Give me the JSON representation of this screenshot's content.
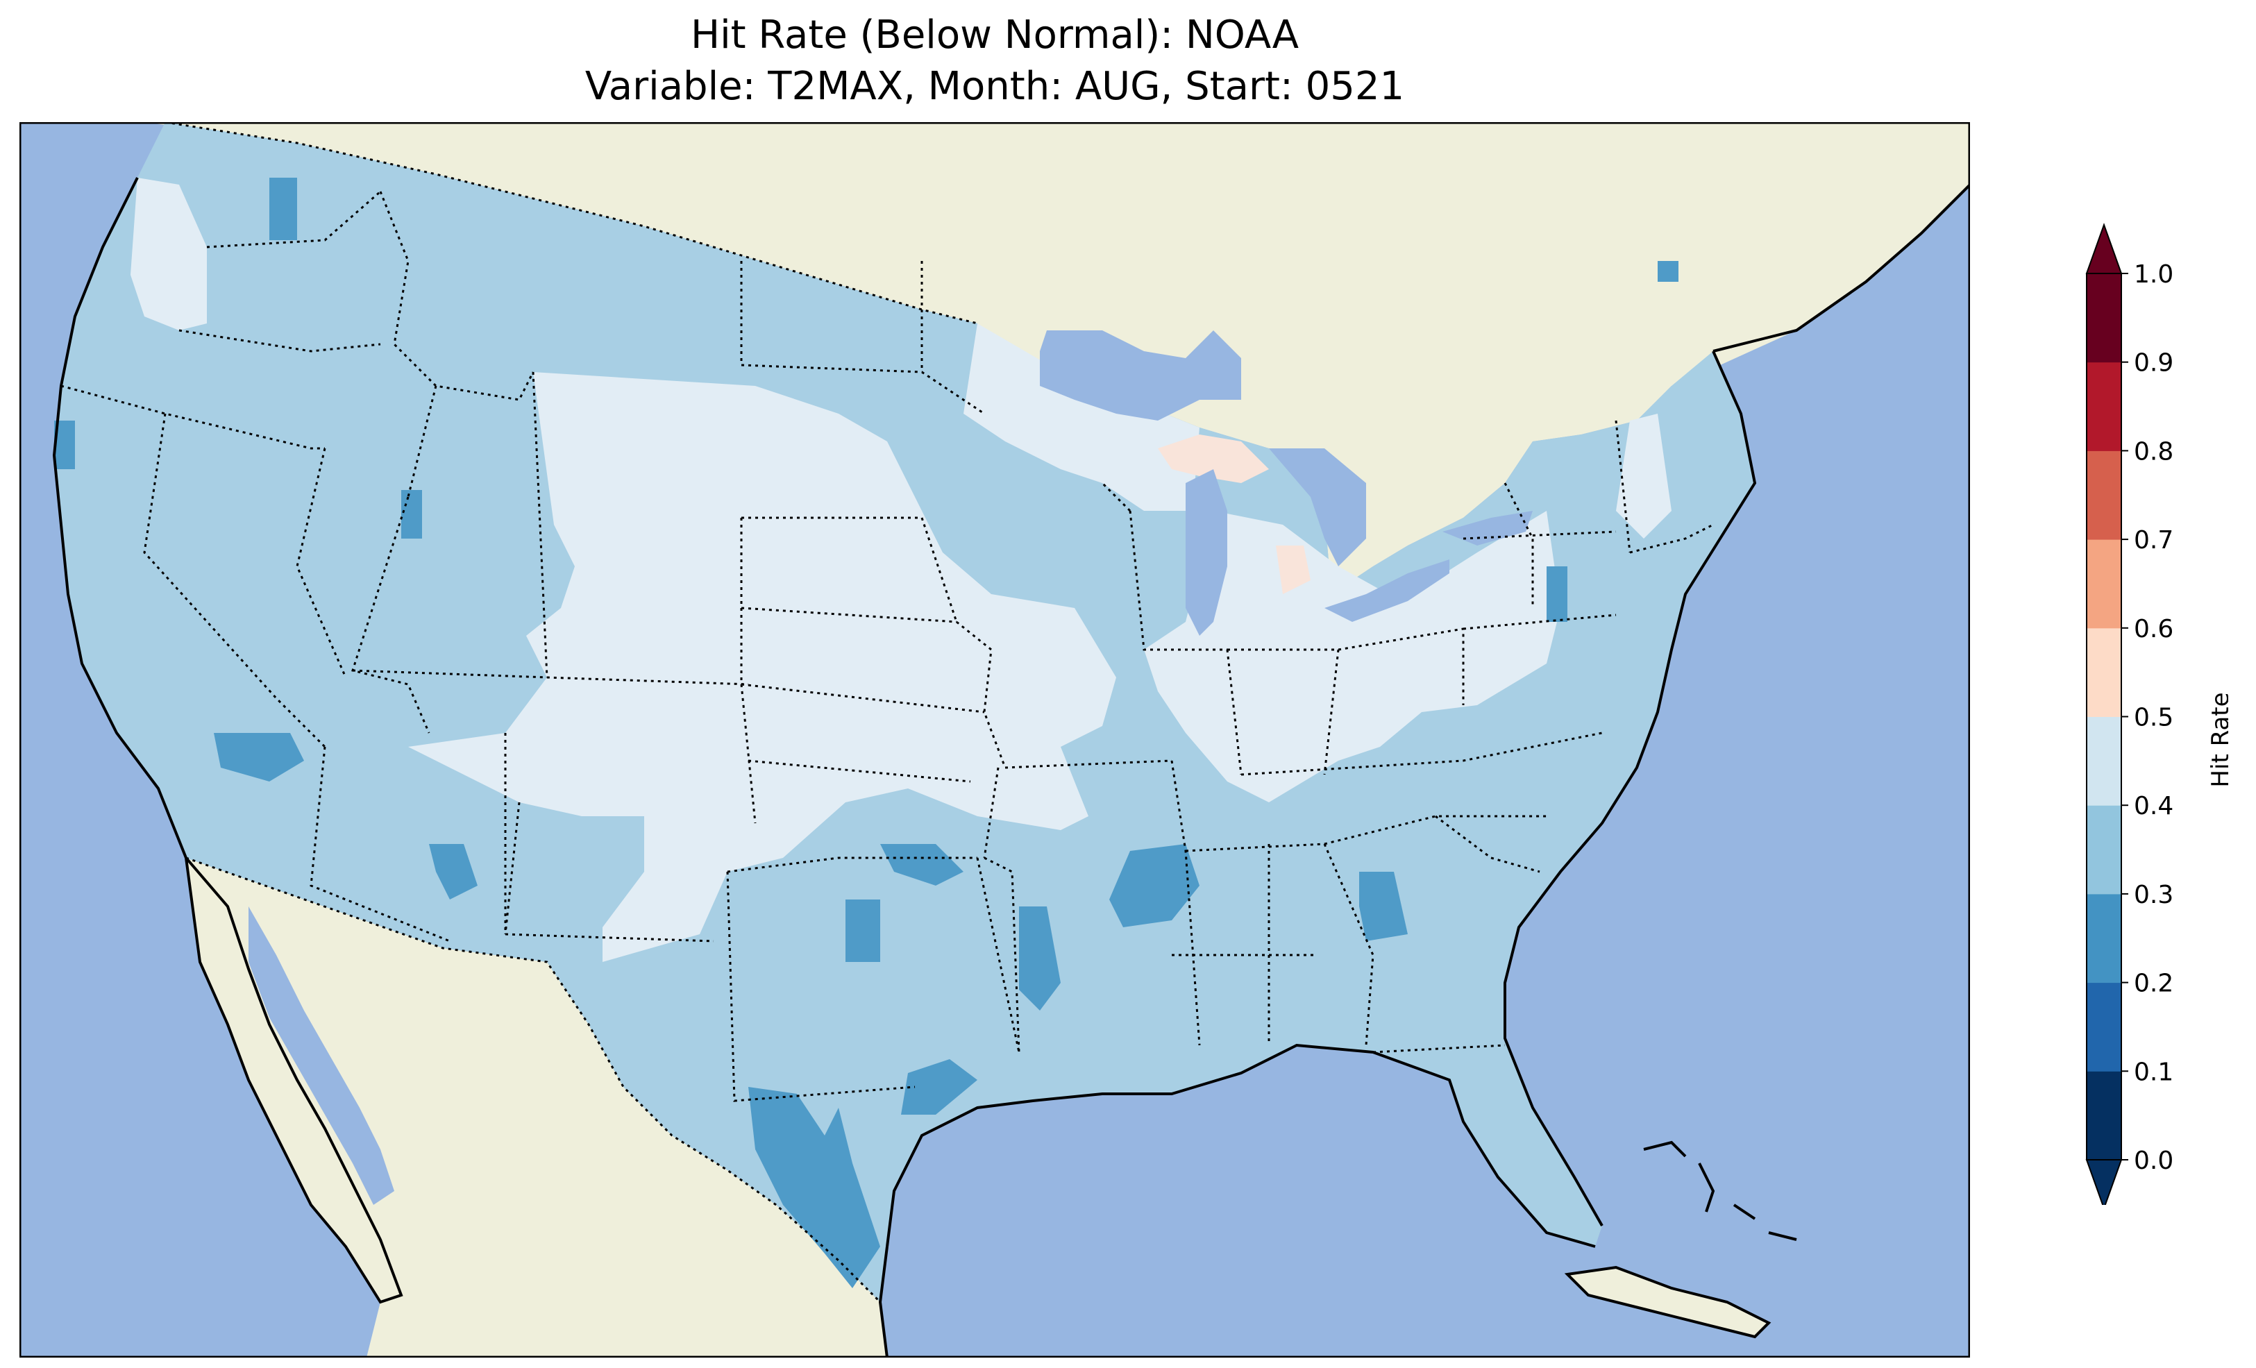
{
  "title": "Hit Rate (Below Normal): NOAA",
  "subtitle": "Variable: T2MAX, Month: AUG, Start: 0521",
  "colorbar": {
    "label": "Hit Rate",
    "ticks": [
      "0.0",
      "0.1",
      "0.2",
      "0.3",
      "0.4",
      "0.5",
      "0.6",
      "0.7",
      "0.8",
      "0.9",
      "1.0"
    ],
    "colors": [
      "#053061",
      "#2166ac",
      "#4393c3",
      "#92c5de",
      "#d1e5f0",
      "#fddbc7",
      "#f4a582",
      "#d6604d",
      "#b2182b",
      "#67001f"
    ],
    "extend": "both"
  },
  "colors": {
    "ocean": "#97b6e1",
    "land": "#efefdb",
    "bin_0_2_0_3": "#4f9bc8",
    "bin_0_3_0_4": "#a8cfe4",
    "bin_0_4_0_5": "#e2edf5",
    "bin_0_5_0_6": "#f9e4da"
  },
  "map": {
    "projection": "Lambert conformal",
    "region": "Contiguous United States",
    "state_borders": "dotted",
    "coastlines": "solid"
  }
}
